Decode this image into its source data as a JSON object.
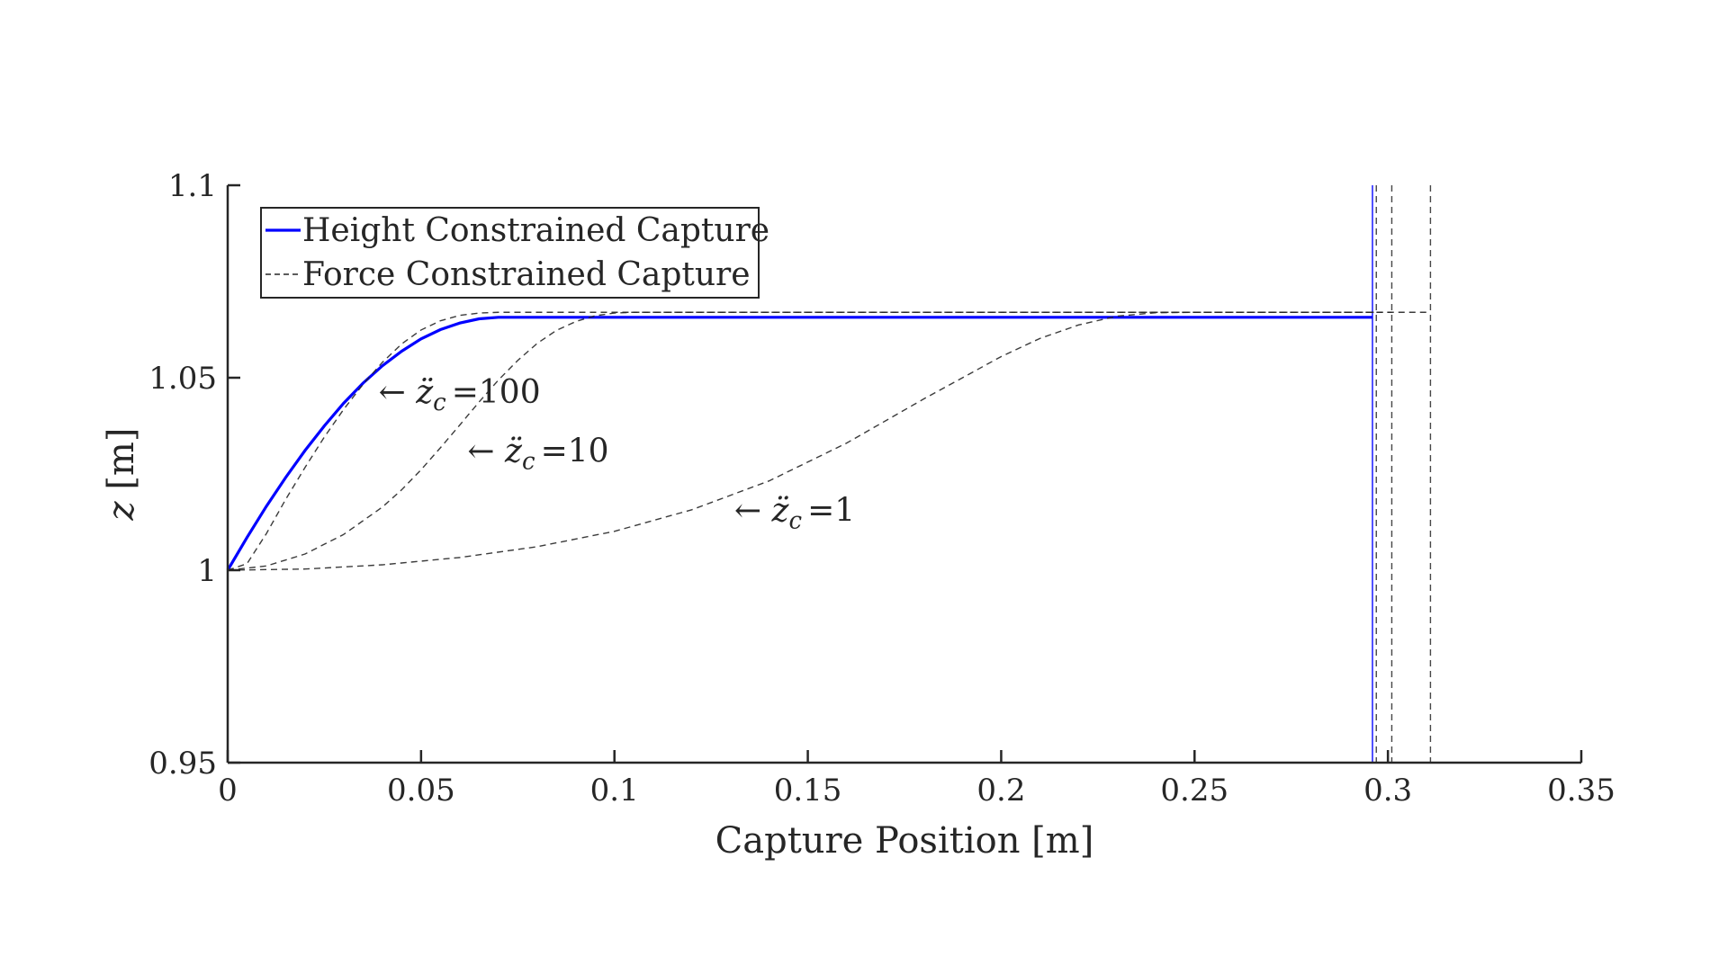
{
  "chart_data": {
    "type": "line",
    "title": "",
    "xlabel": "Capture Position [m]",
    "ylabel": "z [m]",
    "xlim": [
      0,
      0.35
    ],
    "ylim": [
      0.95,
      1.1
    ],
    "xticks": [
      0,
      0.05,
      0.1,
      0.15,
      0.2,
      0.25,
      0.3,
      0.35
    ],
    "xtick_labels": [
      "0",
      "0.05",
      "0.1",
      "0.15",
      "0.2",
      "0.25",
      "0.3",
      "0.35"
    ],
    "yticks": [
      0.95,
      1,
      1.05,
      1.1
    ],
    "ytick_labels": [
      "0.95",
      "1",
      "1.05",
      "1.1"
    ],
    "grid": false,
    "legend": {
      "placement": "top-left",
      "entries": [
        {
          "label": "Height Constrained Capture",
          "color": "#0000ff",
          "style": "solid"
        },
        {
          "label": "Force Constrained Capture",
          "color": "#262626",
          "style": "dashed"
        }
      ]
    },
    "series": [
      {
        "name": "Height Constrained Capture",
        "color": "#0000ff",
        "style": "solid",
        "x": [
          0,
          0.005,
          0.01,
          0.015,
          0.02,
          0.025,
          0.03,
          0.035,
          0.04,
          0.045,
          0.05,
          0.055,
          0.06,
          0.065,
          0.07,
          0.075,
          0.1,
          0.15,
          0.2,
          0.25,
          0.296
        ],
        "y": [
          1.0,
          1.0085,
          1.0166,
          1.0241,
          1.0311,
          1.0375,
          1.0434,
          1.0486,
          1.0531,
          1.0569,
          1.0601,
          1.0625,
          1.0642,
          1.0653,
          1.0657,
          1.0657,
          1.0657,
          1.0657,
          1.0657,
          1.0657,
          1.0657
        ],
        "vertical_line_x": 0.296
      },
      {
        "name": "Force Constrained Capture",
        "color": "#262626",
        "style": "dashed",
        "annotation": "z̈c =100",
        "x": [
          0,
          0.005,
          0.01,
          0.015,
          0.02,
          0.025,
          0.03,
          0.035,
          0.04,
          0.045,
          0.05,
          0.055,
          0.06,
          0.065,
          0.07,
          0.075,
          0.1,
          0.2,
          0.297
        ],
        "y": [
          1.0,
          1.0017,
          1.0095,
          1.0184,
          1.0267,
          1.0346,
          1.0418,
          1.0483,
          1.054,
          1.0588,
          1.0624,
          1.0648,
          1.0662,
          1.0668,
          1.067,
          1.067,
          1.067,
          1.067,
          1.067
        ],
        "vertical_line_x": 0.297
      },
      {
        "name": "Force Constrained Capture",
        "color": "#262626",
        "style": "dashed",
        "annotation": "z̈c =10",
        "x": [
          0,
          0.01,
          0.02,
          0.03,
          0.04,
          0.045,
          0.05,
          0.055,
          0.06,
          0.065,
          0.07,
          0.075,
          0.08,
          0.085,
          0.09,
          0.095,
          0.1,
          0.105,
          0.15,
          0.2,
          0.301
        ],
        "y": [
          1.0,
          1.0011,
          1.0042,
          1.0093,
          1.0164,
          1.0209,
          1.0261,
          1.0318,
          1.0377,
          1.0437,
          1.0494,
          1.0545,
          1.0589,
          1.0623,
          1.0646,
          1.0661,
          1.0668,
          1.067,
          1.067,
          1.067,
          1.067
        ],
        "vertical_line_x": 0.301
      },
      {
        "name": "Force Constrained Capture",
        "color": "#262626",
        "style": "dashed",
        "annotation": "z̈c =1",
        "x": [
          0,
          0.02,
          0.04,
          0.06,
          0.08,
          0.1,
          0.12,
          0.14,
          0.16,
          0.18,
          0.2,
          0.21,
          0.22,
          0.23,
          0.24,
          0.25,
          0.26,
          0.28,
          0.311
        ],
        "y": [
          1.0,
          1.0003,
          1.0014,
          1.0033,
          1.0061,
          1.0101,
          1.0157,
          1.0232,
          1.033,
          1.0445,
          1.0555,
          1.0602,
          1.0637,
          1.066,
          1.0669,
          1.067,
          1.067,
          1.067,
          1.067
        ],
        "vertical_line_x": 0.311
      }
    ],
    "annotations": [
      {
        "text": "z̈c =100",
        "x": 0.039,
        "y": 1.0463
      },
      {
        "text": "z̈c =10",
        "x": 0.062,
        "y": 1.031
      },
      {
        "text": "z̈c =1",
        "x": 0.131,
        "y": 1.0155
      }
    ]
  }
}
